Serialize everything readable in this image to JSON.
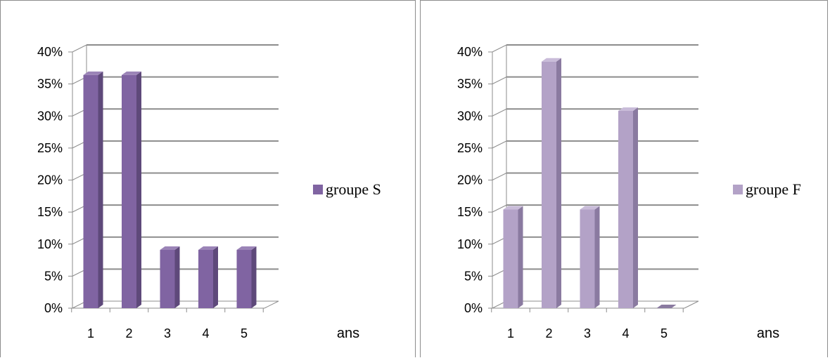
{
  "chart_data": [
    {
      "type": "bar",
      "categories": [
        "1",
        "2",
        "3",
        "4",
        "5"
      ],
      "series": [
        {
          "name": "groupe S",
          "values": [
            0.364,
            0.364,
            0.091,
            0.091,
            0.091
          ]
        }
      ],
      "xlabel": "ans",
      "ylabel": "",
      "ylim": [
        0,
        0.4
      ],
      "yticks": [
        "0%",
        "5%",
        "10%",
        "15%",
        "20%",
        "25%",
        "30%",
        "35%",
        "40%"
      ],
      "grid": true,
      "legend_position": "right",
      "colors": {
        "front": "#8064a2",
        "side": "#5e497a",
        "top": "#9b84b7"
      }
    },
    {
      "type": "bar",
      "categories": [
        "1",
        "2",
        "3",
        "4",
        "5"
      ],
      "series": [
        {
          "name": "groupe F",
          "values": [
            0.154,
            0.385,
            0.154,
            0.308,
            0
          ]
        }
      ],
      "xlabel": "ans",
      "ylabel": "",
      "ylim": [
        0,
        0.4
      ],
      "yticks": [
        "0%",
        "5%",
        "10%",
        "15%",
        "20%",
        "25%",
        "30%",
        "35%",
        "40%"
      ],
      "grid": true,
      "legend_position": "right",
      "colors": {
        "front": "#b3a2c7",
        "side": "#8a7aa0",
        "top": "#c9bcd9"
      }
    }
  ]
}
